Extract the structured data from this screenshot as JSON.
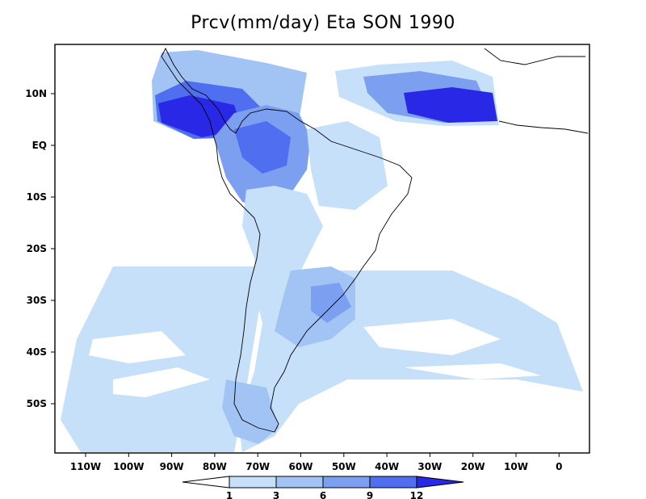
{
  "title": "Prcv(mm/day) Eta SON 1990",
  "map": {
    "longitude_ticks": [
      "110W",
      "100W",
      "90W",
      "80W",
      "70W",
      "60W",
      "50W",
      "40W",
      "30W",
      "20W",
      "10W",
      "0"
    ],
    "latitude_ticks": [
      "10N",
      "EQ",
      "10S",
      "20S",
      "30S",
      "40S",
      "50S"
    ]
  },
  "colorbar": {
    "labels": [
      "1",
      "3",
      "6",
      "9",
      "12"
    ],
    "colors": [
      "#ffffff",
      "#c6e0fa",
      "#a2c4f4",
      "#7c9ff0",
      "#4f6ef0",
      "#2828e6"
    ]
  }
}
